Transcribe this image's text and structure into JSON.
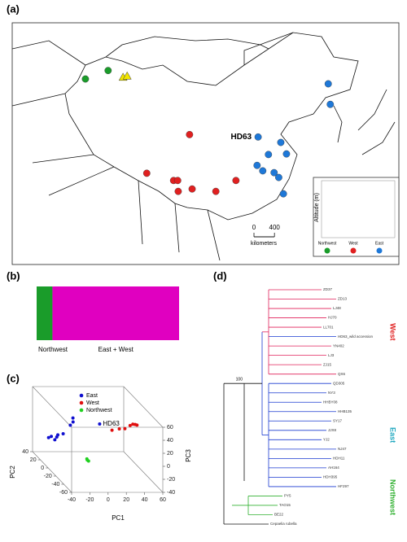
{
  "panels": {
    "a": "(a)",
    "b": "(b)",
    "c": "(c)",
    "d": "(d)"
  },
  "map": {
    "highlight_label": "HD63",
    "scale_ticks": [
      0,
      400
    ],
    "scale_unit": "kilometers",
    "inset_ylabel": "Altitude (m)",
    "groups": [
      {
        "name": "Northwest",
        "color": "#1a9c2a"
      },
      {
        "name": "West",
        "color": "#e02020"
      },
      {
        "name": "East",
        "color": "#1e78d8"
      }
    ],
    "points": [
      {
        "lon": 84.2,
        "lat": 45.7,
        "group": 0
      },
      {
        "lon": 88.6,
        "lat": 47.1,
        "group": 0
      },
      {
        "lon": 91.5,
        "lat": 46.0,
        "group": 0,
        "marker": "triangle",
        "color": "#f2e600"
      },
      {
        "lon": 92.3,
        "lat": 46.2,
        "group": 0,
        "marker": "triangle",
        "color": "#f2e600"
      },
      {
        "lon": 104.4,
        "lat": 36.5,
        "group": 1
      },
      {
        "lon": 96.1,
        "lat": 30.1,
        "group": 1
      },
      {
        "lon": 101.3,
        "lat": 28.9,
        "group": 1
      },
      {
        "lon": 102.1,
        "lat": 28.9,
        "group": 1
      },
      {
        "lon": 102.2,
        "lat": 27.1,
        "group": 1
      },
      {
        "lon": 104.9,
        "lat": 27.5,
        "group": 1
      },
      {
        "lon": 109.5,
        "lat": 27.1,
        "group": 1
      },
      {
        "lon": 113.4,
        "lat": 28.9,
        "group": 1
      },
      {
        "lon": 131.3,
        "lat": 44.9,
        "group": 2
      },
      {
        "lon": 131.7,
        "lat": 41.5,
        "group": 2
      },
      {
        "lon": 117.7,
        "lat": 36.1,
        "group": 2,
        "highlight": true
      },
      {
        "lon": 122.1,
        "lat": 35.2,
        "group": 2
      },
      {
        "lon": 119.7,
        "lat": 33.2,
        "group": 2
      },
      {
        "lon": 123.2,
        "lat": 33.3,
        "group": 2
      },
      {
        "lon": 117.5,
        "lat": 31.4,
        "group": 2
      },
      {
        "lon": 118.6,
        "lat": 30.5,
        "group": 2
      },
      {
        "lon": 120.8,
        "lat": 30.2,
        "group": 2
      },
      {
        "lon": 121.7,
        "lat": 29.4,
        "group": 2
      },
      {
        "lon": 122.6,
        "lat": 26.7,
        "group": 2
      }
    ]
  },
  "structure": {
    "series": [
      {
        "name": "Northwest",
        "color": "#1a9c2a",
        "values": 3
      },
      {
        "name": "East + West",
        "color": "#e000c0",
        "values": 24
      }
    ]
  },
  "pca": {
    "xlabel": "PC1",
    "ylabel": "PC2",
    "zlabel": "PC3",
    "xlim": [
      -40,
      60
    ],
    "xticks": [
      -40,
      -20,
      0,
      20,
      40,
      60
    ],
    "ylim": [
      -60,
      40
    ],
    "yticks": [
      -60,
      -40,
      -20,
      0,
      20,
      40
    ],
    "zlim": [
      -40,
      60
    ],
    "zticks": [
      -40,
      -20,
      0,
      20,
      40,
      60
    ],
    "annotation": "HD63",
    "series": [
      {
        "name": "East",
        "color": "#1010d0",
        "x": [
          -31,
          -28,
          -25,
          -22,
          -20,
          -15,
          -5,
          -2,
          0,
          25
        ],
        "y": [
          20,
          20,
          18,
          20,
          22,
          20,
          25,
          25,
          30,
          20
        ],
        "z": [
          -6,
          -4,
          -8,
          -5,
          -3,
          0,
          10,
          15,
          18,
          15
        ]
      },
      {
        "name": "West",
        "color": "#e01010",
        "x": [
          30,
          38,
          45,
          52,
          55,
          58,
          60
        ],
        "y": [
          0,
          0,
          2,
          5,
          5,
          6,
          6
        ],
        "z": [
          18,
          20,
          19,
          22,
          24,
          23,
          22
        ]
      },
      {
        "name": "Northwest",
        "color": "#20d020",
        "x": [
          -10,
          -9,
          -10
        ],
        "y": [
          -30,
          -31,
          -29
        ],
        "z": [
          -9,
          -10,
          -8
        ]
      }
    ]
  },
  "tree": {
    "root_support": 100,
    "groups": [
      {
        "name": "West",
        "color": "#e0205a"
      },
      {
        "name": "East",
        "color": "#1a3ad0"
      },
      {
        "name": "Northwest",
        "color": "#30b030"
      }
    ],
    "group_label_colors": [
      "#e02020",
      "#20a8c0",
      "#30b030"
    ],
    "leaves": [
      {
        "label": "ZD37",
        "group": 0
      },
      {
        "label": "ZD13",
        "group": 0
      },
      {
        "label": "LJ48",
        "group": 0
      },
      {
        "label": "HJ70",
        "group": 0
      },
      {
        "label": "LL701",
        "group": 0
      },
      {
        "label": "HD63_wild accession",
        "group": 0
      },
      {
        "label": "YN402",
        "group": 0
      },
      {
        "label": "LJ3",
        "group": 0
      },
      {
        "label": "ZJ15",
        "group": 0
      },
      {
        "label": "QX6",
        "group": 0
      },
      {
        "label": "QD305",
        "group": 1
      },
      {
        "label": "NY3",
        "group": 1
      },
      {
        "label": "HHBY08",
        "group": 1
      },
      {
        "label": "HHB135",
        "group": 1
      },
      {
        "label": "SY17",
        "group": 1
      },
      {
        "label": "JJX8",
        "group": 1
      },
      {
        "label": "YJ2",
        "group": 1
      },
      {
        "label": "NJ47",
        "group": 1
      },
      {
        "label": "HDH11",
        "group": 1
      },
      {
        "label": "AH164",
        "group": 1
      },
      {
        "label": "HDH395",
        "group": 1
      },
      {
        "label": "HF297",
        "group": 1
      },
      {
        "label": "PY5",
        "group": 2
      },
      {
        "label": "TAO15",
        "group": 2
      },
      {
        "label": "BE22",
        "group": 2
      },
      {
        "label": "Cepaelia rubella",
        "group": null
      }
    ]
  }
}
